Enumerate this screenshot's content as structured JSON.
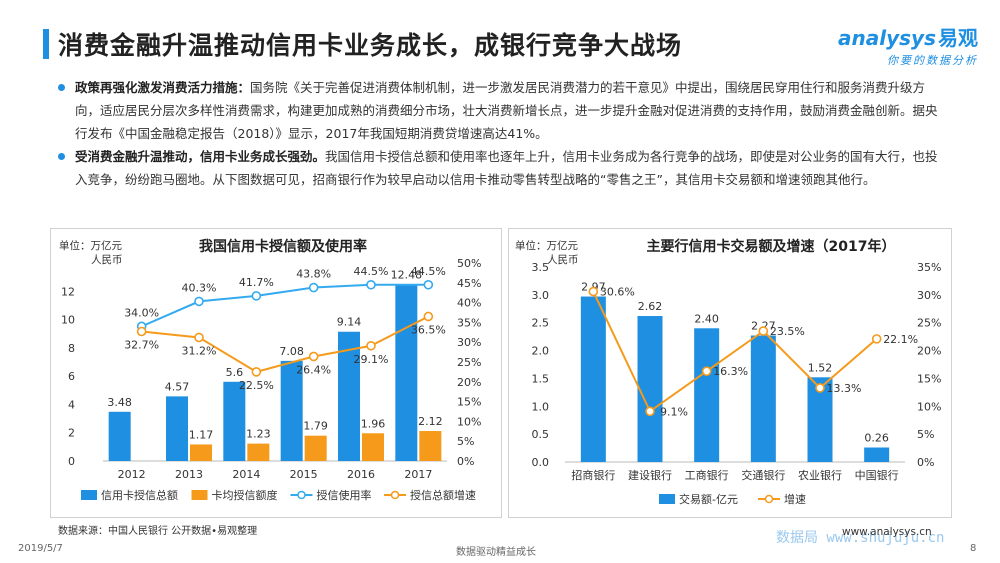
{
  "title": "消费金融升温推动信用卡业务成长，成银行竞争大战场",
  "logo": {
    "main": "analysys",
    "cn": "易观",
    "sub": "你要的数据分析"
  },
  "bullets": [
    {
      "head": "政策再强化激发消费活力措施：",
      "body": "国务院《关于完善促进消费体制机制，进一步激发居民消费潜力的若干意见》中提出，围绕居民穿用住行和服务消费升级方向，适应居民分层次多样性消费需求，构建更加成熟的消费细分市场，壮大消费新增长点，进一步提升金融对促进消费的支持作用，鼓励消费金融创新。据央行发布《中国金融稳定报告（2018）》显示，2017年我国短期消费贷增速高达41%。"
    },
    {
      "head": "受消费金融升温推动，信用卡业务成长强劲。",
      "body": "我国信用卡授信总额和使用率也逐年上升，信用卡业务成为各行竞争的战场，即使是对公业务的国有大行，也投入竞争，纷纷跑马圈地。从下图数据可见，招商银行作为较早启动以信用卡推动零售转型战略的“零售之王”，其信用卡交易额和增速领跑其他行。"
    }
  ],
  "colors": {
    "blue": "#1e8fe1",
    "orange": "#f59a1b",
    "light_blue": "#33aaf0",
    "dark": "#333333"
  },
  "chart_data": [
    {
      "type": "bar",
      "title": "我国信用卡授信额及使用率",
      "unit_label": [
        "单位：万亿元",
        "人民币"
      ],
      "categories": [
        "2012",
        "2013",
        "2014",
        "2015",
        "2016",
        "2017"
      ],
      "ylim": [
        0,
        14
      ],
      "yticks": [
        "0",
        "2",
        "4",
        "6",
        "8",
        "10",
        "12"
      ],
      "y2lim": [
        0,
        50
      ],
      "y2ticks": [
        "0%",
        "5%",
        "10%",
        "15%",
        "20%",
        "25%",
        "30%",
        "35%",
        "40%",
        "45%",
        "50%"
      ],
      "bar_series": [
        {
          "name": "信用卡授信总额",
          "values": [
            3.48,
            4.57,
            5.6,
            7.08,
            9.14,
            12.48
          ],
          "labels": [
            "3.48",
            "4.57",
            "5.6",
            "7.08",
            "9.14",
            "12.48"
          ]
        },
        {
          "name": "卡均授信额度",
          "values": [
            null,
            1.17,
            1.23,
            1.79,
            1.96,
            2.12
          ],
          "labels": [
            "",
            "1.17",
            "1.23",
            "1.79",
            "1.96",
            "2.12"
          ]
        }
      ],
      "line_series": [
        {
          "name": "授信使用率",
          "values": [
            34.0,
            40.3,
            41.7,
            43.8,
            44.5,
            44.5
          ],
          "labels": [
            "34.0%",
            "40.3%",
            "41.7%",
            "43.8%",
            "44.5%",
            "44.5%"
          ]
        },
        {
          "name": "授信总额增速",
          "values": [
            32.7,
            31.2,
            22.5,
            26.4,
            29.1,
            36.5
          ],
          "labels": [
            "32.7%",
            "31.2%",
            "22.5%",
            "26.4%",
            "29.1%",
            "36.5%"
          ]
        }
      ]
    },
    {
      "type": "bar",
      "title": "主要行信用卡交易额及增速（2017年）",
      "unit_label": [
        "单位：万亿元",
        "人民币"
      ],
      "categories": [
        "招商银行",
        "建设银行",
        "工商银行",
        "交通银行",
        "农业银行",
        "中国银行"
      ],
      "ylim": [
        0,
        3.5
      ],
      "yticks": [
        "0.0",
        "0.5",
        "1.0",
        "1.5",
        "2.0",
        "2.5",
        "3.0",
        "3.5"
      ],
      "y2lim": [
        0,
        35
      ],
      "y2ticks": [
        "0%",
        "5%",
        "10%",
        "15%",
        "20%",
        "25%",
        "30%",
        "35%"
      ],
      "bar_series": [
        {
          "name": "交易额-亿元",
          "values": [
            2.97,
            2.62,
            2.4,
            2.27,
            1.52,
            0.26
          ],
          "labels": [
            "2.97",
            "2.62",
            "2.40",
            "2.27",
            "1.52",
            "0.26"
          ]
        }
      ],
      "line_series": [
        {
          "name": "增速",
          "values": [
            30.6,
            9.1,
            16.3,
            23.5,
            13.3,
            22.1
          ],
          "labels": [
            "30.6%",
            "9.1%",
            "16.3%",
            "23.5%",
            "13.3%",
            "22.1%"
          ]
        }
      ]
    }
  ],
  "footer": {
    "source": "数据来源：中国人民银行 公开数据•易观整理",
    "date": "2019/5/7",
    "slogan": "数据驱动精益成长",
    "site": "www.analysys.cn",
    "page": "8",
    "watermark_site": "数据局 www.shujuju.cn"
  }
}
